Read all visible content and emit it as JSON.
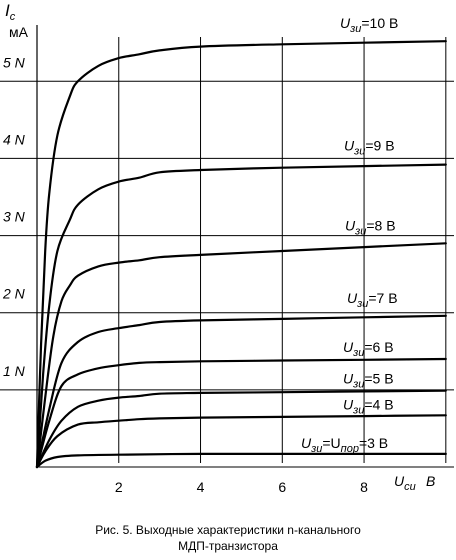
{
  "chart_data": {
    "type": "line",
    "ylabel": "Ic",
    "ylabel_main": "I",
    "ylabel_sub": "c",
    "yunit": "мА",
    "xlabel_main": "U",
    "xlabel_sub": "си",
    "xunit": "В",
    "xlim": [
      0,
      10.2
    ],
    "ylim": [
      0,
      5.6
    ],
    "grid": true,
    "x_ticks": [
      {
        "value": 2,
        "label": "2"
      },
      {
        "value": 4,
        "label": "4"
      },
      {
        "value": 6,
        "label": "6"
      },
      {
        "value": 8,
        "label": "8"
      }
    ],
    "y_ticks": [
      {
        "value": 1,
        "label": "1 N"
      },
      {
        "value": 2,
        "label": "2 N"
      },
      {
        "value": 3,
        "label": "3 N"
      },
      {
        "value": 4,
        "label": "4 N"
      },
      {
        "value": 5,
        "label": "5 N"
      }
    ],
    "series": [
      {
        "name": "Uзи=Uпор=3 В",
        "x": [
          0,
          0.2,
          0.5,
          1,
          2,
          4,
          6,
          8,
          10
        ],
        "y": [
          0,
          0.08,
          0.13,
          0.15,
          0.16,
          0.17,
          0.17,
          0.17,
          0.17
        ]
      },
      {
        "name": "Uзи=4 В",
        "x": [
          0,
          0.2,
          0.5,
          1,
          1.5,
          2,
          2.5,
          3,
          4,
          6,
          8,
          10
        ],
        "y": [
          0,
          0.2,
          0.4,
          0.55,
          0.58,
          0.6,
          0.62,
          0.63,
          0.64,
          0.65,
          0.66,
          0.67
        ]
      },
      {
        "name": "Uзи=5 В",
        "x": [
          0,
          0.3,
          0.6,
          1,
          1.5,
          2,
          2.5,
          3,
          4,
          6,
          8,
          10
        ],
        "y": [
          0,
          0.35,
          0.6,
          0.78,
          0.86,
          0.9,
          0.92,
          0.95,
          0.96,
          0.97,
          0.98,
          0.99
        ]
      },
      {
        "name": "Uзи=6 В",
        "x": [
          0,
          0.3,
          0.6,
          1,
          1.5,
          2,
          2.5,
          3,
          4,
          6,
          8,
          10
        ],
        "y": [
          0,
          0.6,
          1.05,
          1.2,
          1.28,
          1.32,
          1.35,
          1.36,
          1.37,
          1.38,
          1.39,
          1.4
        ]
      },
      {
        "name": "Uзи=7 В",
        "x": [
          0,
          0.3,
          0.6,
          1,
          1.5,
          2,
          2.5,
          3,
          4,
          6,
          8,
          10
        ],
        "y": [
          0,
          0.75,
          1.35,
          1.62,
          1.75,
          1.8,
          1.84,
          1.88,
          1.9,
          1.92,
          1.94,
          1.96
        ]
      },
      {
        "name": "Uзи=8 В",
        "x": [
          0,
          0.2,
          0.4,
          0.6,
          0.8,
          1,
          1.5,
          2,
          2.5,
          3,
          4,
          6,
          8,
          10
        ],
        "y": [
          0,
          0.9,
          1.7,
          2.15,
          2.35,
          2.48,
          2.6,
          2.65,
          2.68,
          2.72,
          2.75,
          2.8,
          2.85,
          2.9
        ]
      },
      {
        "name": "Uзи=9 В",
        "x": [
          0,
          0.15,
          0.3,
          0.5,
          0.8,
          1,
          1.5,
          2,
          2.5,
          3,
          4,
          6,
          8,
          10
        ],
        "y": [
          0,
          1.2,
          2.1,
          2.8,
          3.2,
          3.4,
          3.6,
          3.7,
          3.75,
          3.82,
          3.85,
          3.88,
          3.9,
          3.92
        ]
      },
      {
        "name": "Uзи=10 В",
        "x": [
          0,
          0.1,
          0.2,
          0.3,
          0.5,
          0.8,
          1,
          1.5,
          2,
          2.5,
          3,
          4,
          6,
          8,
          10
        ],
        "y": [
          0,
          1.6,
          2.8,
          3.55,
          4.3,
          4.8,
          5.0,
          5.2,
          5.3,
          5.35,
          5.4,
          5.45,
          5.48,
          5.5,
          5.52
        ]
      }
    ],
    "series_labels": [
      {
        "main": "U",
        "sub": "зи",
        "rest": "=U",
        "sub2": "пор",
        "tail": "=3 В"
      },
      {
        "main": "U",
        "sub": "зи",
        "rest": "=4 В"
      },
      {
        "main": "U",
        "sub": "зи",
        "rest": "=5 В"
      },
      {
        "main": "U",
        "sub": "зи",
        "rest": "=6 В"
      },
      {
        "main": "U",
        "sub": "зи",
        "rest": "=7 В"
      },
      {
        "main": "U",
        "sub": "зи",
        "rest": "=8 В"
      },
      {
        "main": "U",
        "sub": "зи",
        "rest": "=9 В"
      },
      {
        "main": "U",
        "sub": "зи",
        "rest": "=10 В"
      }
    ]
  },
  "caption": {
    "line1": "Рис. 5.   Выходные характеристики n-канального",
    "line2": "МДП-транзистора"
  }
}
